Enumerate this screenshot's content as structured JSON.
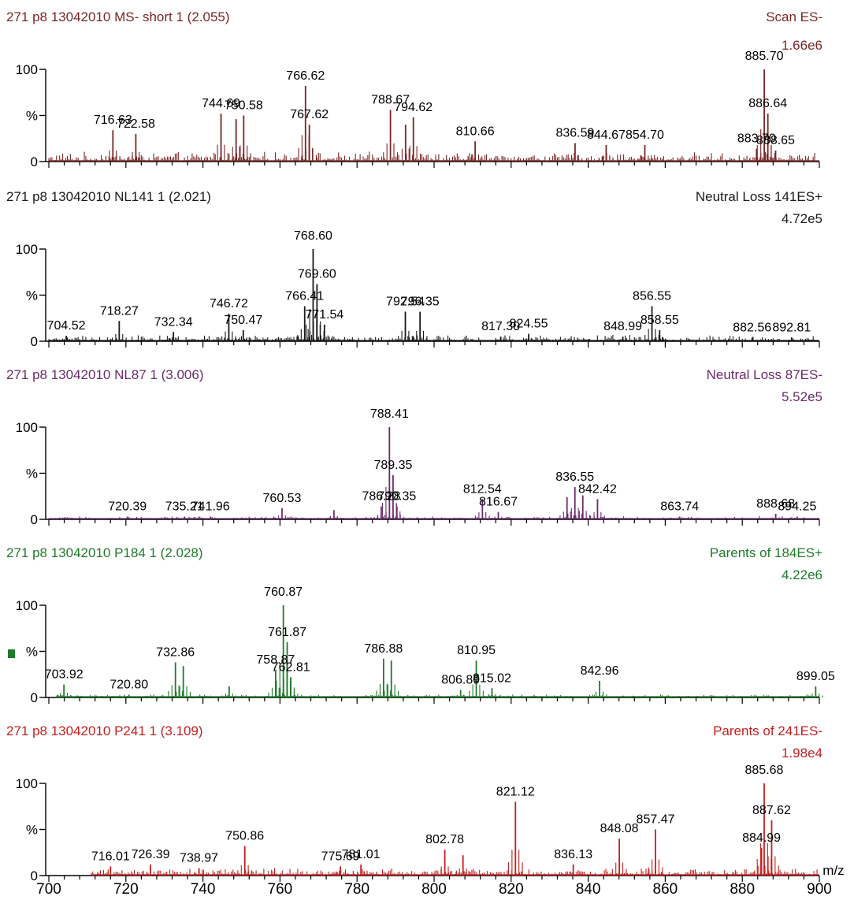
{
  "chart_data": [
    {
      "type": "line",
      "title": "271 p8 13042010 MS- short 1 (2.055)",
      "scan_label": "Scan ES-",
      "intensity": "1.66e6",
      "color": "#7a2626",
      "xlim": [
        700,
        900
      ],
      "ylim": [
        0,
        100
      ],
      "y_ticks": [
        "100",
        "%",
        "0"
      ],
      "start": 700,
      "noise": 9,
      "peaks": [
        {
          "x": 716.63,
          "y": 34,
          "label": "716.63"
        },
        {
          "x": 722.58,
          "y": 30,
          "label": "722.58"
        },
        {
          "x": 744.69,
          "y": 52,
          "label": "744.69"
        },
        {
          "x": 748.6,
          "y": 46,
          "label": ""
        },
        {
          "x": 750.58,
          "y": 50,
          "label": "750.58"
        },
        {
          "x": 766.62,
          "y": 82,
          "label": "766.62"
        },
        {
          "x": 767.62,
          "y": 40,
          "label": "767.62"
        },
        {
          "x": 788.67,
          "y": 56,
          "label": "788.67"
        },
        {
          "x": 792.6,
          "y": 40,
          "label": ""
        },
        {
          "x": 794.62,
          "y": 48,
          "label": "794.62"
        },
        {
          "x": 810.66,
          "y": 22,
          "label": "810.66"
        },
        {
          "x": 836.59,
          "y": 20,
          "label": "836.59"
        },
        {
          "x": 844.67,
          "y": 18,
          "label": "844.67"
        },
        {
          "x": 854.7,
          "y": 18,
          "label": "854.70"
        },
        {
          "x": 883.7,
          "y": 14,
          "label": "883.70"
        },
        {
          "x": 885.7,
          "y": 100,
          "label": "885.70"
        },
        {
          "x": 886.64,
          "y": 52,
          "label": "886.64"
        },
        {
          "x": 888.65,
          "y": 12,
          "label": "888.65"
        }
      ]
    },
    {
      "type": "line",
      "title": "271 p8 13042010 NL141 1 (2.021)",
      "scan_label": "Neutral Loss 141ES+",
      "intensity": "4.72e5",
      "color": "#1a1a1a",
      "xlim": [
        700,
        900
      ],
      "ylim": [
        0,
        100
      ],
      "y_ticks": [
        "100",
        "%",
        "0"
      ],
      "start": 700,
      "noise": 6,
      "peaks": [
        {
          "x": 704.52,
          "y": 6,
          "label": "704.52"
        },
        {
          "x": 718.27,
          "y": 22,
          "label": "718.27"
        },
        {
          "x": 732.34,
          "y": 10,
          "label": "732.34"
        },
        {
          "x": 746.72,
          "y": 30,
          "label": "746.72"
        },
        {
          "x": 750.47,
          "y": 12,
          "label": "750.47"
        },
        {
          "x": 766.41,
          "y": 38,
          "label": "766.41"
        },
        {
          "x": 768.6,
          "y": 100,
          "label": "768.60"
        },
        {
          "x": 769.6,
          "y": 62,
          "label": "769.60"
        },
        {
          "x": 771.54,
          "y": 18,
          "label": "771.54"
        },
        {
          "x": 792.54,
          "y": 32,
          "label": "792.54"
        },
        {
          "x": 796.35,
          "y": 32,
          "label": "796.35"
        },
        {
          "x": 817.3,
          "y": 5,
          "label": "817.30"
        },
        {
          "x": 824.55,
          "y": 8,
          "label": "824.55"
        },
        {
          "x": 848.99,
          "y": 5,
          "label": "848.99"
        },
        {
          "x": 856.55,
          "y": 38,
          "label": "856.55"
        },
        {
          "x": 858.55,
          "y": 12,
          "label": "858.55"
        },
        {
          "x": 882.56,
          "y": 4,
          "label": "882.56"
        },
        {
          "x": 892.81,
          "y": 4,
          "label": "892.81"
        }
      ]
    },
    {
      "type": "line",
      "title": "271 p8 13042010 NL87 1 (3.006)",
      "scan_label": "Neutral Loss 87ES-",
      "intensity": "5.52e5",
      "color": "#6b2a6b",
      "xlim": [
        700,
        900
      ],
      "ylim": [
        0,
        100
      ],
      "y_ticks": [
        "100",
        "%",
        "0"
      ],
      "start": 700,
      "noise": 3,
      "peaks": [
        {
          "x": 720.39,
          "y": 3,
          "label": "720.39"
        },
        {
          "x": 735.21,
          "y": 3,
          "label": "735.21"
        },
        {
          "x": 741.96,
          "y": 3,
          "label": "741.96"
        },
        {
          "x": 760.53,
          "y": 12,
          "label": "760.53"
        },
        {
          "x": 774.0,
          "y": 10,
          "label": ""
        },
        {
          "x": 786.28,
          "y": 14,
          "label": "786.28"
        },
        {
          "x": 788.41,
          "y": 100,
          "label": "788.41"
        },
        {
          "x": 789.35,
          "y": 48,
          "label": "789.35"
        },
        {
          "x": 790.35,
          "y": 14,
          "label": "790.35"
        },
        {
          "x": 812.54,
          "y": 22,
          "label": "812.54"
        },
        {
          "x": 816.67,
          "y": 8,
          "label": "816.67"
        },
        {
          "x": 836.55,
          "y": 35,
          "label": "836.55"
        },
        {
          "x": 834.5,
          "y": 24,
          "label": ""
        },
        {
          "x": 838.6,
          "y": 26,
          "label": ""
        },
        {
          "x": 842.42,
          "y": 22,
          "label": "842.42"
        },
        {
          "x": 863.74,
          "y": 3,
          "label": "863.74"
        },
        {
          "x": 888.68,
          "y": 6,
          "label": "888.68"
        },
        {
          "x": 894.25,
          "y": 3,
          "label": "894.25"
        }
      ]
    },
    {
      "type": "line",
      "title": "271 p8 13042010 P184 1 (2.028)",
      "scan_label": "Parents of 184ES+",
      "intensity": "4.22e6",
      "color": "#1f7a2a",
      "xlim": [
        700,
        900
      ],
      "ylim": [
        0,
        100
      ],
      "y_ticks": [
        "100",
        "%",
        "0"
      ],
      "start": 702,
      "noise": 3,
      "peaks": [
        {
          "x": 703.92,
          "y": 14,
          "label": "703.92"
        },
        {
          "x": 720.8,
          "y": 3,
          "label": "720.80"
        },
        {
          "x": 732.86,
          "y": 38,
          "label": "732.86"
        },
        {
          "x": 734.9,
          "y": 34,
          "label": ""
        },
        {
          "x": 746.8,
          "y": 12,
          "label": ""
        },
        {
          "x": 758.87,
          "y": 30,
          "label": "758.87"
        },
        {
          "x": 760.87,
          "y": 100,
          "label": "760.87"
        },
        {
          "x": 761.87,
          "y": 60,
          "label": "761.87"
        },
        {
          "x": 762.81,
          "y": 22,
          "label": "762.81"
        },
        {
          "x": 786.88,
          "y": 42,
          "label": "786.88"
        },
        {
          "x": 788.9,
          "y": 40,
          "label": ""
        },
        {
          "x": 806.89,
          "y": 8,
          "label": "806.89"
        },
        {
          "x": 810.95,
          "y": 40,
          "label": "810.95"
        },
        {
          "x": 815.02,
          "y": 10,
          "label": "815.02"
        },
        {
          "x": 842.96,
          "y": 18,
          "label": "842.96"
        },
        {
          "x": 899.05,
          "y": 12,
          "label": "899.05"
        }
      ]
    },
    {
      "type": "line",
      "title": "271 p8 13042010 P241 1 (3.109)",
      "scan_label": "Parents of 241ES-",
      "intensity": "1.98e4",
      "color": "#c41e1e",
      "xlim": [
        700,
        900
      ],
      "ylim": [
        0,
        100
      ],
      "y_ticks": [
        "100",
        "%",
        "0"
      ],
      "start": 711,
      "noise": 7,
      "peaks": [
        {
          "x": 716.01,
          "y": 10,
          "label": "716.01"
        },
        {
          "x": 726.39,
          "y": 12,
          "label": "726.39"
        },
        {
          "x": 738.97,
          "y": 8,
          "label": "738.97"
        },
        {
          "x": 750.86,
          "y": 32,
          "label": "750.86"
        },
        {
          "x": 775.69,
          "y": 10,
          "label": "775.69"
        },
        {
          "x": 781.01,
          "y": 12,
          "label": "781.01"
        },
        {
          "x": 802.78,
          "y": 28,
          "label": "802.78"
        },
        {
          "x": 807.5,
          "y": 22,
          "label": ""
        },
        {
          "x": 821.12,
          "y": 80,
          "label": "821.12"
        },
        {
          "x": 836.13,
          "y": 12,
          "label": "836.13"
        },
        {
          "x": 848.08,
          "y": 40,
          "label": "848.08"
        },
        {
          "x": 857.47,
          "y": 50,
          "label": "857.47"
        },
        {
          "x": 884.99,
          "y": 30,
          "label": "884.99"
        },
        {
          "x": 885.68,
          "y": 100,
          "label": "885.68"
        },
        {
          "x": 887.62,
          "y": 60,
          "label": "887.62"
        }
      ]
    }
  ],
  "x_axis": {
    "unit": "m/z",
    "ticks": [
      "700",
      "720",
      "740",
      "760",
      "780",
      "800",
      "820",
      "840",
      "860",
      "880",
      "900"
    ]
  }
}
